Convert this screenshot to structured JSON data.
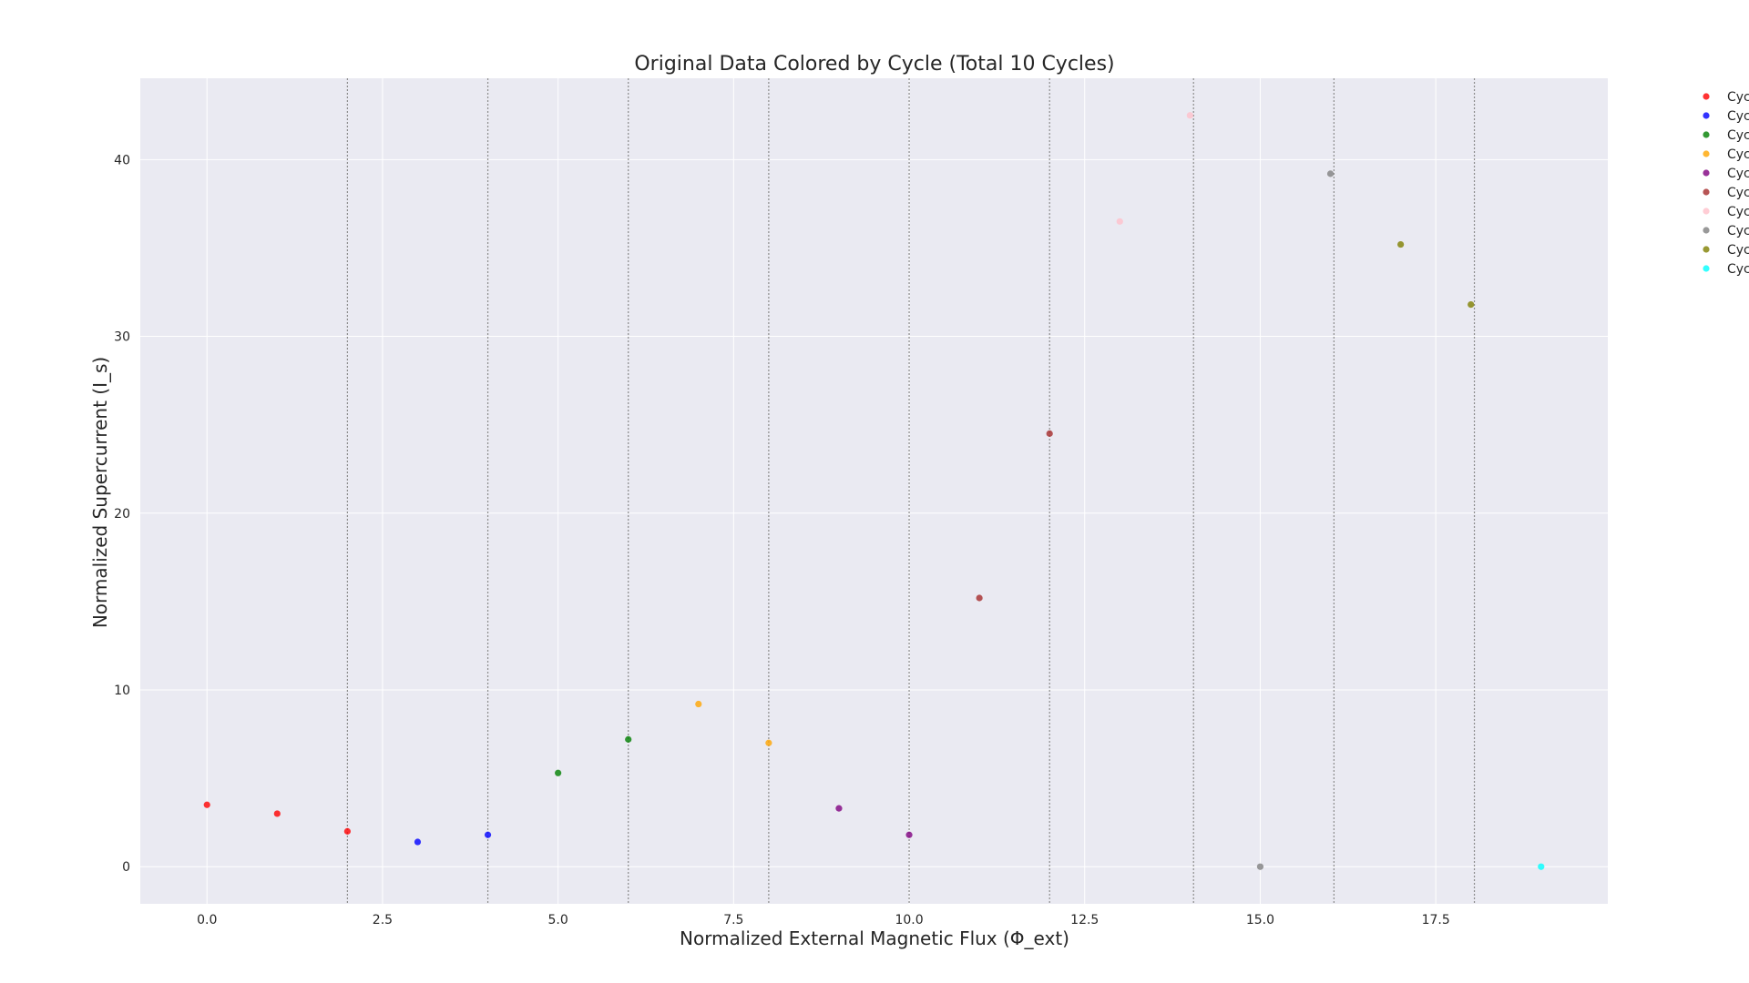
{
  "chart_data": {
    "type": "scatter",
    "title": "Original Data Colored by Cycle (Total 10 Cycles)",
    "xlabel": "Normalized External Magnetic Flux (Φ_ext)",
    "ylabel": "Normalized Supercurrent (I_s)",
    "xlim": [
      -0.95,
      19.95
    ],
    "ylim": [
      -2.1,
      44.6
    ],
    "xticks": [
      0.0,
      2.5,
      5.0,
      7.5,
      10.0,
      12.5,
      15.0,
      17.5
    ],
    "xtick_labels": [
      "0.0",
      "2.5",
      "5.0",
      "7.5",
      "10.0",
      "12.5",
      "15.0",
      "17.5"
    ],
    "yticks": [
      0,
      10,
      20,
      30,
      40
    ],
    "ytick_labels": [
      "0",
      "10",
      "20",
      "30",
      "40"
    ],
    "grid": true,
    "background": "#eaeaf2",
    "cycle_boundaries": [
      2.0,
      4.0,
      6.0,
      8.0,
      10.0,
      12.0,
      14.05,
      16.05,
      18.05
    ],
    "legend_position": "outside-right",
    "legend_labels": [
      "Cyc",
      "Cyc",
      "Cyc",
      "Cyc",
      "Cyc",
      "Cyc",
      "Cyc",
      "Cyc",
      "Cyc",
      "Cyc"
    ],
    "series": [
      {
        "color": "#ff0000",
        "x": [
          0,
          1,
          2
        ],
        "y": [
          3.5,
          3.0,
          2.0
        ]
      },
      {
        "color": "#0000ff",
        "x": [
          3,
          4
        ],
        "y": [
          1.4,
          1.8
        ]
      },
      {
        "color": "#008000",
        "x": [
          5,
          6
        ],
        "y": [
          5.3,
          7.2
        ]
      },
      {
        "color": "#ffa500",
        "x": [
          7,
          8
        ],
        "y": [
          9.2,
          7.0
        ]
      },
      {
        "color": "#800080",
        "x": [
          9,
          10
        ],
        "y": [
          3.3,
          1.8
        ]
      },
      {
        "color": "#a52a2a",
        "x": [
          11,
          12
        ],
        "y": [
          15.2,
          24.5
        ]
      },
      {
        "color": "#ffc0cb",
        "x": [
          13,
          14
        ],
        "y": [
          36.5,
          42.5
        ]
      },
      {
        "color": "#808080",
        "x": [
          15,
          16
        ],
        "y": [
          0.0,
          39.2
        ]
      },
      {
        "color": "#808000",
        "x": [
          17,
          18
        ],
        "y": [
          35.2,
          31.8
        ]
      },
      {
        "color": "#00ffff",
        "x": [
          19
        ],
        "y": [
          0.0
        ]
      }
    ]
  }
}
